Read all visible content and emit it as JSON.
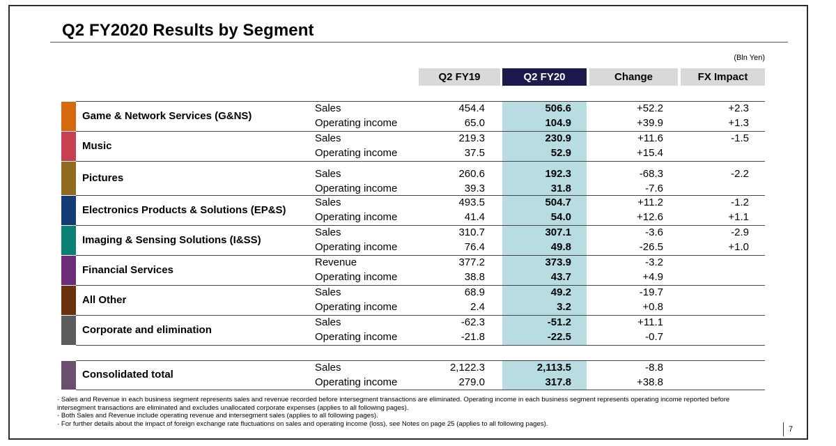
{
  "title": "Q2 FY2020  Results by Segment",
  "unit": "(Bln Yen)",
  "columns": {
    "q2fy19": "Q2 FY19",
    "q2fy20": "Q2 FY20",
    "change": "Change",
    "fx": "FX Impact"
  },
  "segments": [
    {
      "name": "Game & Network Services (G&NS)",
      "color": "#d4690e",
      "rows": [
        {
          "metric": "Sales",
          "v19": "454.4",
          "v20": "506.6",
          "change": "+52.2",
          "fx": "+2.3"
        },
        {
          "metric": "Operating income",
          "v19": "65.0",
          "v20": "104.9",
          "change": "+39.9",
          "fx": "+1.3"
        }
      ]
    },
    {
      "name": "Music",
      "color": "#c8404f",
      "rows": [
        {
          "metric": "Sales",
          "v19": "219.3",
          "v20": "230.9",
          "change": "+11.6",
          "fx": "-1.5"
        },
        {
          "metric": "Operating income",
          "v19": "37.5",
          "v20": "52.9",
          "change": "+15.4",
          "fx": ""
        }
      ]
    },
    {
      "name": "Pictures",
      "color": "#8e6b1f",
      "rows": [
        {
          "metric": "Sales",
          "v19": "260.6",
          "v20": "192.3",
          "change": "-68.3",
          "fx": "-2.2"
        },
        {
          "metric": "Operating income",
          "v19": "39.3",
          "v20": "31.8",
          "change": "-7.6",
          "fx": ""
        }
      ]
    },
    {
      "name": "Electronics Products & Solutions (EP&S)",
      "color": "#143b74",
      "rows": [
        {
          "metric": "Sales",
          "v19": "493.5",
          "v20": "504.7",
          "change": "+11.2",
          "fx": "-1.2"
        },
        {
          "metric": "Operating income",
          "v19": "41.4",
          "v20": "54.0",
          "change": "+12.6",
          "fx": "+1.1"
        }
      ]
    },
    {
      "name": "Imaging & Sensing Solutions (I&SS)",
      "color": "#0b7f73",
      "rows": [
        {
          "metric": "Sales",
          "v19": "310.7",
          "v20": "307.1",
          "change": "-3.6",
          "fx": "-2.9"
        },
        {
          "metric": "Operating income",
          "v19": "76.4",
          "v20": "49.8",
          "change": "-26.5",
          "fx": "+1.0"
        }
      ]
    },
    {
      "name": "Financial Services",
      "color": "#6b2d78",
      "rows": [
        {
          "metric": "Revenue",
          "v19": "377.2",
          "v20": "373.9",
          "change": "-3.2",
          "fx": ""
        },
        {
          "metric": "Operating income",
          "v19": "38.8",
          "v20": "43.7",
          "change": "+4.9",
          "fx": ""
        }
      ]
    },
    {
      "name": "All Other",
      "color": "#6a3310",
      "rows": [
        {
          "metric": "Sales",
          "v19": "68.9",
          "v20": "49.2",
          "change": "-19.7",
          "fx": ""
        },
        {
          "metric": "Operating income",
          "v19": "2.4",
          "v20": "3.2",
          "change": "+0.8",
          "fx": ""
        }
      ]
    },
    {
      "name": "Corporate and elimination",
      "color": "#5c5c5c",
      "rows": [
        {
          "metric": "Sales",
          "v19": "-62.3",
          "v20": "-51.2",
          "change": "+11.1",
          "fx": ""
        },
        {
          "metric": "Operating income",
          "v19": "-21.8",
          "v20": "-22.5",
          "change": "-0.7",
          "fx": ""
        }
      ]
    }
  ],
  "consolidated": {
    "name": "Consolidated total",
    "color": "#6b4f6f",
    "rows": [
      {
        "metric": "Sales",
        "v19": "2,122.3",
        "v20": "2,113.5",
        "change": "-8.8",
        "fx": ""
      },
      {
        "metric": "Operating income",
        "v19": "279.0",
        "v20": "317.8",
        "change": "+38.8",
        "fx": ""
      }
    ]
  },
  "footnotes": [
    "· Sales and Revenue in each business segment represents sales and revenue recorded before intersegment transactions are eliminated. Operating income in each business segment represents operating income reported before intersegment transactions are eliminated and excludes unallocated corporate expenses (applies to all following pages).",
    "· Both Sales and Revenue include operating revenue and intersegment sales (applies to all following pages).",
    "· For further details about the impact of foreign exchange rate fluctuations on sales and operating income (loss), see Notes on page 25 (applies to all following pages)."
  ],
  "page_number": "7"
}
